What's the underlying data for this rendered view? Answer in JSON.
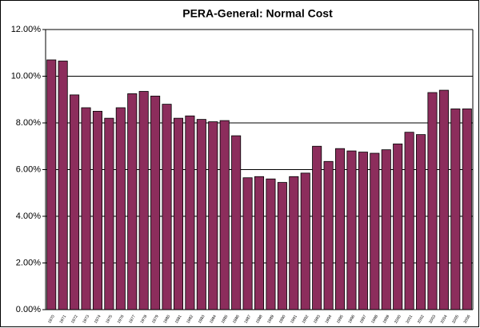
{
  "chart_data": {
    "type": "bar",
    "title": "PERA-General:  Normal Cost",
    "categories": [
      "1970",
      "1971",
      "1972",
      "1973",
      "1974",
      "1975",
      "1976",
      "1977",
      "1978",
      "1979",
      "1980",
      "1981",
      "1982",
      "1983",
      "1984",
      "1985",
      "1986",
      "1987",
      "1988",
      "1989",
      "1990",
      "1991",
      "1992",
      "1993",
      "1994",
      "1995",
      "1996",
      "1997",
      "1998",
      "1999",
      "2000",
      "2001",
      "2002",
      "2003",
      "2004",
      "2005",
      "2006"
    ],
    "values": [
      10.7,
      10.65,
      9.2,
      8.65,
      8.5,
      8.2,
      8.65,
      9.25,
      9.35,
      9.15,
      8.8,
      8.2,
      8.3,
      8.15,
      8.05,
      8.1,
      7.45,
      5.65,
      5.7,
      5.6,
      5.45,
      5.7,
      5.85,
      7.0,
      6.35,
      6.9,
      6.8,
      6.75,
      6.7,
      6.85,
      7.1,
      7.6,
      7.5,
      9.3,
      9.4,
      8.6,
      8.6
    ],
    "color": "#8c2d5c",
    "ylim": [
      0,
      12
    ],
    "yticks": [
      {
        "value": 0,
        "label": "0.00%"
      },
      {
        "value": 2,
        "label": "2.00%"
      },
      {
        "value": 4,
        "label": "4.00%"
      },
      {
        "value": 6,
        "label": "6.00%"
      },
      {
        "value": 8,
        "label": "8.00%"
      },
      {
        "value": 10,
        "label": "10.00%"
      },
      {
        "value": 12,
        "label": "12.00%"
      }
    ],
    "grid": true
  }
}
